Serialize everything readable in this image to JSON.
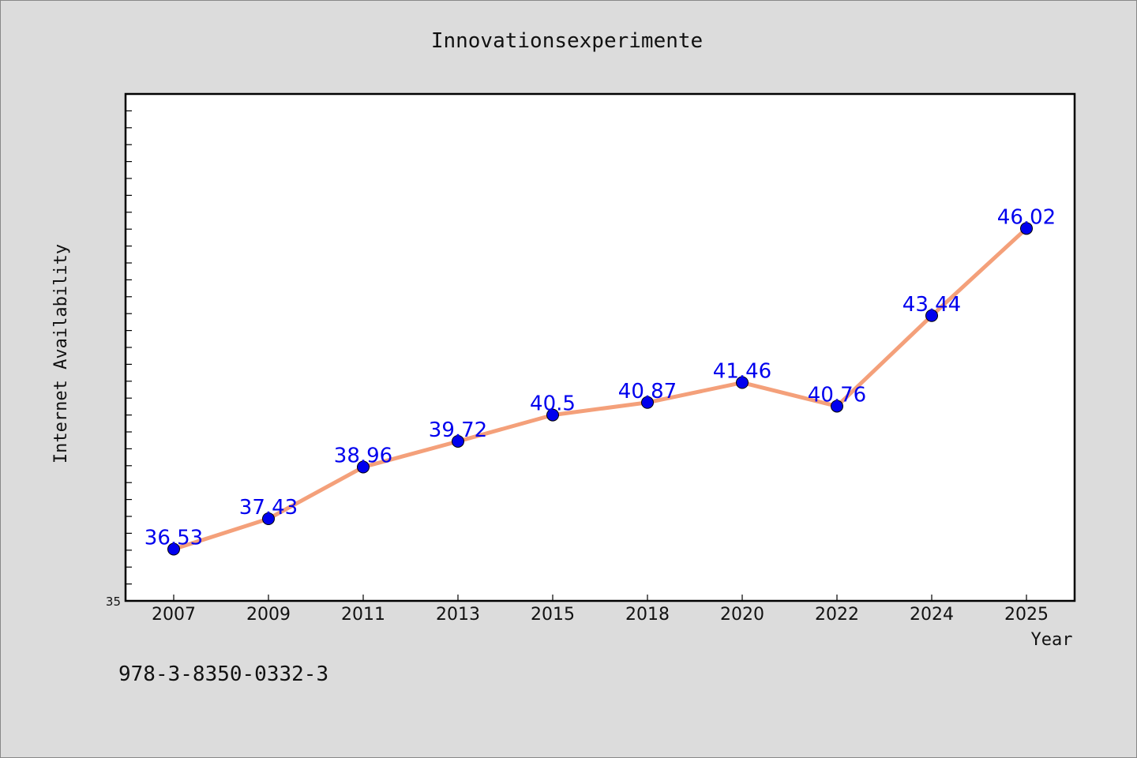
{
  "chart_data": {
    "type": "line",
    "title": "Innovationsexperimente",
    "xlabel": "Year",
    "ylabel": "Internet Availability",
    "categories": [
      "2007",
      "2009",
      "2011",
      "2013",
      "2015",
      "2018",
      "2020",
      "2022",
      "2024",
      "2025"
    ],
    "series": [
      {
        "values": [
          36.53,
          37.43,
          38.96,
          39.72,
          40.5,
          40.87,
          41.46,
          40.76,
          43.44,
          46.02
        ]
      }
    ],
    "data_labels": [
      "36.53",
      "37.43",
      "38.96",
      "39.72",
      "40.5",
      "40.87",
      "41.46",
      "40.76",
      "43.44",
      "46.02"
    ],
    "ylim": [
      35,
      50
    ],
    "y_tick_labels": [
      "35"
    ],
    "grid": false,
    "colors": {
      "line": "#f4a07a",
      "marker": "#0000ee",
      "data_label": "#0000ee",
      "plot_background": "#ffffff",
      "page_background": "#dcdcdc"
    }
  },
  "footer": {
    "isbn": "978-3-8350-0332-3"
  }
}
